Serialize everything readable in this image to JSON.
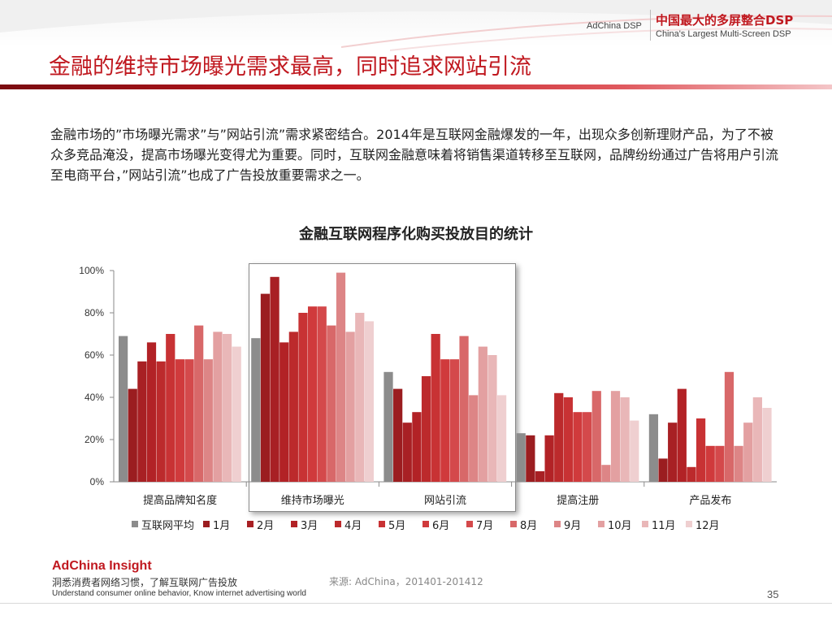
{
  "header": {
    "brand_small": "AdChina DSP",
    "brand_cn": "中国最大的多屏整合DSP",
    "brand_en": "China's Largest Multi-Screen DSP"
  },
  "title": "金融的维持市场曝光需求最高，同时追求网站引流",
  "body": "金融市场的”市场曝光需求”与”网站引流”需求紧密结合。2014年是互联网金融爆发的一年，出现众多创新理财产品，为了不被众多竞品淹没，提高市场曝光变得尤为重要。同时，互联网金融意味着将销售渠道转移至互联网，品牌纷纷通过广告将用户引流至电商平台，”网站引流”也成了广告投放重要需求之一。",
  "chart_data": {
    "type": "bar",
    "title": "金融互联网程序化购买投放目的统计",
    "categories": [
      "提高品牌知名度",
      "维持市场曝光",
      "网站引流",
      "提高注册",
      "产品发布"
    ],
    "y_ticks": [
      "0%",
      "20%",
      "40%",
      "60%",
      "80%",
      "100%"
    ],
    "ylim": [
      0,
      100
    ],
    "highlighted_category": "维持市场曝光",
    "legend_position": "bottom",
    "grid": false,
    "series": [
      {
        "name": "互联网平均",
        "color": "#8c8c8c",
        "values": [
          69,
          68,
          52,
          23,
          32
        ]
      },
      {
        "name": "1月",
        "color": "#9b1d20",
        "values": [
          44,
          89,
          44,
          22,
          11
        ]
      },
      {
        "name": "2月",
        "color": "#a82024",
        "values": [
          57,
          97,
          28,
          5,
          28
        ]
      },
      {
        "name": "3月",
        "color": "#b22226",
        "values": [
          66,
          66,
          33,
          22,
          44
        ]
      },
      {
        "name": "4月",
        "color": "#bc2a2c",
        "values": [
          57,
          71,
          50,
          42,
          7
        ]
      },
      {
        "name": "5月",
        "color": "#c83234",
        "values": [
          70,
          80,
          70,
          40,
          30
        ]
      },
      {
        "name": "6月",
        "color": "#d03a3c",
        "values": [
          58,
          83,
          58,
          33,
          17
        ]
      },
      {
        "name": "7月",
        "color": "#d4494b",
        "values": [
          58,
          83,
          58,
          33,
          17
        ]
      },
      {
        "name": "8月",
        "color": "#d86869",
        "values": [
          74,
          74,
          69,
          43,
          52
        ]
      },
      {
        "name": "9月",
        "color": "#dd8586",
        "values": [
          58,
          99,
          41,
          8,
          17
        ]
      },
      {
        "name": "10月",
        "color": "#e3a0a1",
        "values": [
          71,
          71,
          64,
          43,
          28
        ]
      },
      {
        "name": "11月",
        "color": "#e9b7b8",
        "values": [
          70,
          80,
          60,
          40,
          40
        ]
      },
      {
        "name": "12月",
        "color": "#efcfd0",
        "values": [
          64,
          76,
          41,
          29,
          35
        ]
      }
    ]
  },
  "footer": {
    "brand": "AdChina Insight",
    "tagline_cn": "洞悉消费者网络习惯，了解互联网广告投放",
    "tagline_en": "Understand consumer online behavior, Know internet advertising world",
    "source": "来源: AdChina，201401-201412",
    "page_number": "35"
  }
}
